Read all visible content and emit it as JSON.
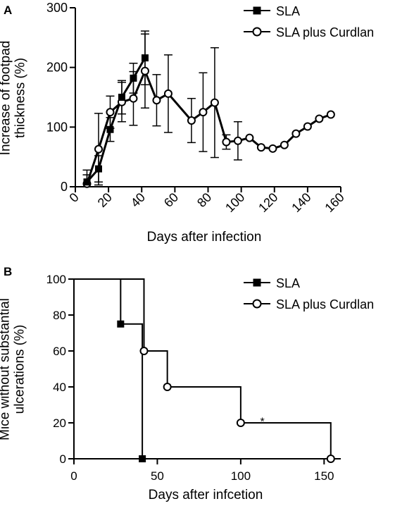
{
  "chart_data": [
    {
      "type": "line",
      "panel_label": "A",
      "xlabel": "Days after infection",
      "ylabel_lines": [
        "Increase of footpad",
        "thickness (%)"
      ],
      "xlim": [
        0,
        160
      ],
      "ylim": [
        0,
        300
      ],
      "xticks": [
        0,
        20,
        40,
        60,
        80,
        100,
        120,
        140,
        160
      ],
      "yticks": [
        0,
        100,
        200,
        300
      ],
      "legend_position": "top-right",
      "grid": false,
      "series": [
        {
          "name": "SLA",
          "marker": "filled-square",
          "points": [
            {
              "x": 7,
              "y": 8,
              "err": 20
            },
            {
              "x": 14,
              "y": 30,
              "err": 22
            },
            {
              "x": 21,
              "y": 96,
              "err": 20
            },
            {
              "x": 28,
              "y": 150,
              "err": 28
            },
            {
              "x": 35,
              "y": 182,
              "err": 25
            },
            {
              "x": 42,
              "y": 216,
              "err": 45
            }
          ]
        },
        {
          "name": "SLA plus Curdlan",
          "marker": "open-circle",
          "points": [
            {
              "x": 7,
              "y": 5,
              "err": 15
            },
            {
              "x": 14,
              "y": 63,
              "err": 60
            },
            {
              "x": 21,
              "y": 125,
              "err": 27
            },
            {
              "x": 28,
              "y": 142,
              "err": 33
            },
            {
              "x": 35,
              "y": 148,
              "err": 45
            },
            {
              "x": 42,
              "y": 194,
              "err": 62
            },
            {
              "x": 49,
              "y": 145,
              "err": 43
            },
            {
              "x": 56,
              "y": 156,
              "err": 65
            },
            {
              "x": 70,
              "y": 111,
              "err": 37
            },
            {
              "x": 77,
              "y": 125,
              "err": 66
            },
            {
              "x": 84,
              "y": 141,
              "err": 92
            },
            {
              "x": 91,
              "y": 75,
              "err": 12
            },
            {
              "x": 98,
              "y": 77,
              "err": 32
            },
            {
              "x": 105,
              "y": 82,
              "err": 0
            },
            {
              "x": 112,
              "y": 66,
              "err": 0
            },
            {
              "x": 119,
              "y": 64,
              "err": 0
            },
            {
              "x": 126,
              "y": 70,
              "err": 0
            },
            {
              "x": 133,
              "y": 89,
              "err": 0
            },
            {
              "x": 140,
              "y": 101,
              "err": 0
            },
            {
              "x": 147,
              "y": 114,
              "err": 0
            },
            {
              "x": 154,
              "y": 121,
              "err": 0
            }
          ]
        }
      ]
    },
    {
      "type": "line",
      "subtype": "survival-step",
      "panel_label": "B",
      "xlabel": "Days after infcetion",
      "ylabel_lines": [
        "Mice without substantial",
        "ulcerations (%)"
      ],
      "xlim": [
        0,
        160
      ],
      "ylim": [
        0,
        100
      ],
      "xticks": [
        0,
        50,
        100,
        150
      ],
      "yticks": [
        0,
        20,
        40,
        60,
        80,
        100
      ],
      "legend_position": "top-right",
      "grid": false,
      "annotation": "*",
      "annotation_x": 113,
      "annotation_y": 21,
      "series": [
        {
          "name": "SLA",
          "marker": "filled-square",
          "steps": [
            [
              0,
              100
            ],
            [
              28,
              100
            ],
            [
              28,
              75
            ],
            [
              41,
              75
            ],
            [
              41,
              0
            ]
          ],
          "markers": [
            [
              28,
              75
            ],
            [
              41,
              0
            ]
          ]
        },
        {
          "name": "SLA plus Curdlan",
          "marker": "open-circle",
          "steps": [
            [
              0,
              100
            ],
            [
              42,
              100
            ],
            [
              42,
              60
            ],
            [
              56,
              60
            ],
            [
              56,
              40
            ],
            [
              100,
              40
            ],
            [
              100,
              20
            ],
            [
              154,
              20
            ],
            [
              154,
              0
            ]
          ],
          "markers": [
            [
              42,
              60
            ],
            [
              56,
              40
            ],
            [
              100,
              20
            ],
            [
              154,
              0
            ]
          ]
        }
      ]
    }
  ]
}
